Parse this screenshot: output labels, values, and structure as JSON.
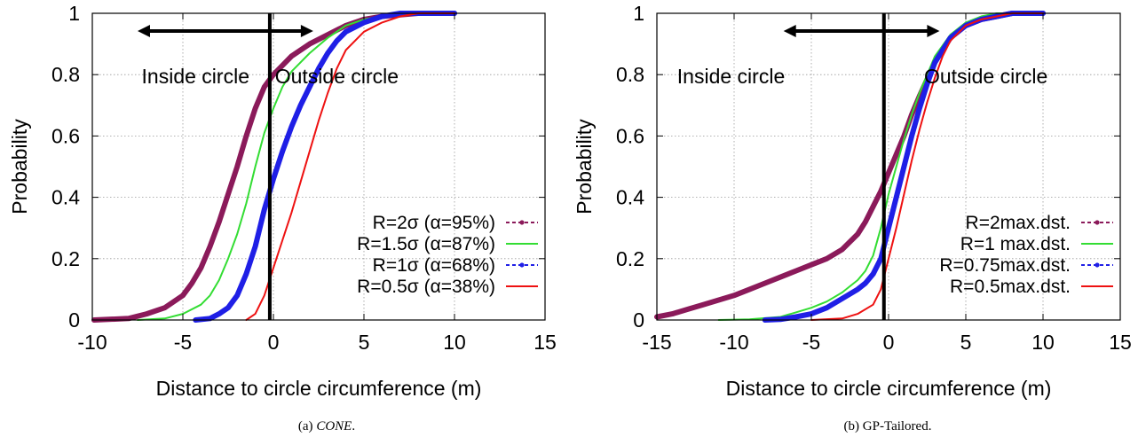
{
  "chart_data": [
    {
      "type": "line",
      "caption_prefix": "(a)",
      "caption_name": "CONE",
      "caption_suffix": ".",
      "caption_italic": true,
      "xlabel": "Distance to circle circumference (m)",
      "ylabel": "Probability",
      "xlim": [
        -10,
        15
      ],
      "ylim": [
        0,
        1
      ],
      "xticks": [
        -10,
        -5,
        0,
        5,
        10,
        15
      ],
      "yticks": [
        0,
        0.2,
        0.4,
        0.6,
        0.8,
        1
      ],
      "grid": true,
      "legend_position": "bottom-right",
      "annotations": {
        "inside": "Inside circle",
        "outside": "Outside circle"
      },
      "boundary_x": -0.2,
      "series": [
        {
          "name": "R=2σ (α=95%)",
          "color": "#8b1a5a",
          "style": "dashed-points",
          "width": 6,
          "points": [
            [
              -9.9,
              0
            ],
            [
              -8,
              0.005
            ],
            [
              -7,
              0.02
            ],
            [
              -6,
              0.04
            ],
            [
              -5,
              0.08
            ],
            [
              -4.5,
              0.12
            ],
            [
              -4,
              0.17
            ],
            [
              -3.5,
              0.24
            ],
            [
              -3,
              0.32
            ],
            [
              -2.5,
              0.41
            ],
            [
              -2,
              0.5
            ],
            [
              -1.5,
              0.6
            ],
            [
              -1,
              0.69
            ],
            [
              -0.5,
              0.76
            ],
            [
              0,
              0.8
            ],
            [
              0.5,
              0.83
            ],
            [
              1,
              0.86
            ],
            [
              2,
              0.9
            ],
            [
              3,
              0.93
            ],
            [
              4,
              0.96
            ],
            [
              5,
              0.98
            ],
            [
              6,
              0.99
            ],
            [
              7,
              0.995
            ],
            [
              8,
              1
            ],
            [
              10,
              1
            ]
          ]
        },
        {
          "name": "R=1.5σ (α=87%)",
          "color": "#33dd33",
          "style": "solid",
          "width": 2,
          "points": [
            [
              -7.5,
              0
            ],
            [
              -6,
              0.005
            ],
            [
              -5,
              0.02
            ],
            [
              -4,
              0.05
            ],
            [
              -3.5,
              0.08
            ],
            [
              -3,
              0.13
            ],
            [
              -2.5,
              0.2
            ],
            [
              -2,
              0.28
            ],
            [
              -1.5,
              0.38
            ],
            [
              -1,
              0.5
            ],
            [
              -0.5,
              0.61
            ],
            [
              0,
              0.69
            ],
            [
              0.5,
              0.76
            ],
            [
              1,
              0.81
            ],
            [
              2,
              0.87
            ],
            [
              3,
              0.92
            ],
            [
              4,
              0.96
            ],
            [
              5,
              0.98
            ],
            [
              6,
              0.99
            ],
            [
              7,
              1
            ],
            [
              8,
              1
            ]
          ]
        },
        {
          "name": "R=1σ (α=68%)",
          "color": "#1f1fe6",
          "style": "dashed-points",
          "width": 6,
          "points": [
            [
              -4.3,
              0
            ],
            [
              -3.5,
              0.005
            ],
            [
              -3,
              0.02
            ],
            [
              -2.5,
              0.04
            ],
            [
              -2,
              0.08
            ],
            [
              -1.5,
              0.15
            ],
            [
              -1,
              0.24
            ],
            [
              -0.5,
              0.36
            ],
            [
              0,
              0.46
            ],
            [
              0.5,
              0.55
            ],
            [
              1,
              0.63
            ],
            [
              1.5,
              0.7
            ],
            [
              2,
              0.76
            ],
            [
              2.5,
              0.82
            ],
            [
              3,
              0.87
            ],
            [
              3.5,
              0.91
            ],
            [
              4,
              0.94
            ],
            [
              5,
              0.97
            ],
            [
              6,
              0.99
            ],
            [
              7,
              1
            ],
            [
              8,
              1
            ],
            [
              10,
              1
            ]
          ]
        },
        {
          "name": "R=0.5σ (α=38%)",
          "color": "#ee1111",
          "style": "solid",
          "width": 2,
          "points": [
            [
              -1.5,
              0
            ],
            [
              -1,
              0.02
            ],
            [
              -0.5,
              0.08
            ],
            [
              0,
              0.17
            ],
            [
              0.5,
              0.26
            ],
            [
              1,
              0.35
            ],
            [
              1.5,
              0.45
            ],
            [
              2,
              0.55
            ],
            [
              2.5,
              0.65
            ],
            [
              3,
              0.74
            ],
            [
              3.5,
              0.82
            ],
            [
              4,
              0.88
            ],
            [
              5,
              0.94
            ],
            [
              6,
              0.97
            ],
            [
              7,
              0.99
            ],
            [
              8,
              1
            ],
            [
              10,
              1
            ]
          ]
        }
      ]
    },
    {
      "type": "line",
      "caption_prefix": "(b)",
      "caption_name": "GP-Tailored",
      "caption_suffix": ".",
      "caption_italic": false,
      "xlabel": "Distance to circle circumference (m)",
      "ylabel": "Probability",
      "xlim": [
        -15,
        15
      ],
      "ylim": [
        0,
        1
      ],
      "xticks": [
        -15,
        -10,
        -5,
        0,
        5,
        10,
        15
      ],
      "yticks": [
        0,
        0.2,
        0.4,
        0.6,
        0.8,
        1
      ],
      "grid": true,
      "legend_position": "bottom-right",
      "annotations": {
        "inside": "Inside circle",
        "outside": "Outside circle"
      },
      "boundary_x": -0.3,
      "series": [
        {
          "name": "R=2max.dst.",
          "color": "#8b1a5a",
          "style": "dashed-points",
          "width": 6,
          "points": [
            [
              -15,
              0.01
            ],
            [
              -14,
              0.02
            ],
            [
              -13,
              0.035
            ],
            [
              -12,
              0.05
            ],
            [
              -11,
              0.065
            ],
            [
              -10,
              0.08
            ],
            [
              -9,
              0.1
            ],
            [
              -8,
              0.12
            ],
            [
              -7,
              0.14
            ],
            [
              -6,
              0.16
            ],
            [
              -5,
              0.18
            ],
            [
              -4,
              0.2
            ],
            [
              -3,
              0.23
            ],
            [
              -2,
              0.28
            ],
            [
              -1.5,
              0.32
            ],
            [
              -1,
              0.37
            ],
            [
              -0.5,
              0.42
            ],
            [
              0,
              0.48
            ],
            [
              0.5,
              0.54
            ],
            [
              1,
              0.6
            ],
            [
              1.5,
              0.67
            ],
            [
              2,
              0.73
            ],
            [
              3,
              0.84
            ],
            [
              4,
              0.92
            ],
            [
              5,
              0.96
            ],
            [
              6,
              0.98
            ],
            [
              7,
              0.99
            ],
            [
              8,
              1
            ],
            [
              10,
              1
            ]
          ]
        },
        {
          "name": "R=1 max.dst.",
          "color": "#33dd33",
          "style": "solid",
          "width": 2,
          "points": [
            [
              -11,
              0
            ],
            [
              -9,
              0.002
            ],
            [
              -7,
              0.01
            ],
            [
              -6,
              0.025
            ],
            [
              -5,
              0.04
            ],
            [
              -4,
              0.06
            ],
            [
              -3,
              0.09
            ],
            [
              -2,
              0.13
            ],
            [
              -1.5,
              0.16
            ],
            [
              -1,
              0.21
            ],
            [
              -0.5,
              0.3
            ],
            [
              0,
              0.41
            ],
            [
              0.5,
              0.5
            ],
            [
              1,
              0.59
            ],
            [
              1.5,
              0.67
            ],
            [
              2,
              0.74
            ],
            [
              2.5,
              0.8
            ],
            [
              3,
              0.86
            ],
            [
              4,
              0.93
            ],
            [
              5,
              0.97
            ],
            [
              6,
              0.99
            ],
            [
              7,
              1
            ],
            [
              8,
              1
            ]
          ]
        },
        {
          "name": "R=0.75max.dst.",
          "color": "#1f1fe6",
          "style": "dashed-points",
          "width": 6,
          "points": [
            [
              -8,
              0
            ],
            [
              -7,
              0.002
            ],
            [
              -6,
              0.01
            ],
            [
              -5,
              0.02
            ],
            [
              -4,
              0.04
            ],
            [
              -3,
              0.07
            ],
            [
              -2,
              0.1
            ],
            [
              -1.5,
              0.12
            ],
            [
              -1,
              0.15
            ],
            [
              -0.5,
              0.2
            ],
            [
              0,
              0.3
            ],
            [
              0.5,
              0.4
            ],
            [
              1,
              0.5
            ],
            [
              1.5,
              0.6
            ],
            [
              2,
              0.69
            ],
            [
              2.5,
              0.77
            ],
            [
              3,
              0.84
            ],
            [
              4,
              0.92
            ],
            [
              5,
              0.96
            ],
            [
              6,
              0.98
            ],
            [
              7,
              0.99
            ],
            [
              8,
              1
            ],
            [
              10,
              1
            ]
          ]
        },
        {
          "name": "R=0.5max.dst.",
          "color": "#ee1111",
          "style": "solid",
          "width": 2,
          "points": [
            [
              -5,
              0
            ],
            [
              -3,
              0.005
            ],
            [
              -2,
              0.02
            ],
            [
              -1,
              0.05
            ],
            [
              -0.5,
              0.1
            ],
            [
              0,
              0.2
            ],
            [
              0.5,
              0.3
            ],
            [
              1,
              0.41
            ],
            [
              1.5,
              0.52
            ],
            [
              2,
              0.62
            ],
            [
              2.5,
              0.71
            ],
            [
              3,
              0.79
            ],
            [
              3.5,
              0.86
            ],
            [
              4,
              0.91
            ],
            [
              5,
              0.96
            ],
            [
              6,
              0.98
            ],
            [
              7,
              0.99
            ],
            [
              8,
              1
            ],
            [
              10,
              1
            ]
          ]
        }
      ]
    }
  ]
}
